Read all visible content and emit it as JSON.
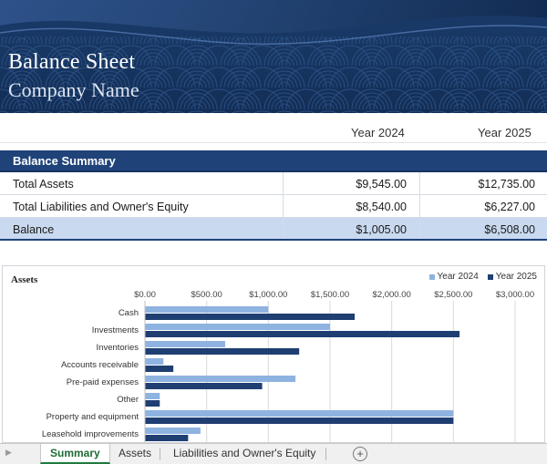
{
  "banner": {
    "title": "Balance Sheet",
    "subtitle": "Company Name"
  },
  "years": [
    "Year 2024",
    "Year 2025"
  ],
  "summary": {
    "header": "Balance Summary",
    "rows": [
      {
        "label": "Total Assets",
        "v2024": "$9,545.00",
        "v2025": "$12,735.00"
      },
      {
        "label": "Total Liabilities and Owner's Equity",
        "v2024": "$8,540.00",
        "v2025": "$6,227.00"
      },
      {
        "label": "Balance",
        "v2024": "$1,005.00",
        "v2025": "$6,508.00"
      }
    ]
  },
  "colors": {
    "banner": "#163560",
    "header": "#1f4379",
    "series2024": "#8fb3e0",
    "series2025": "#1f3f72",
    "accent_tab": "#1f7a3d"
  },
  "chart_data": {
    "type": "bar",
    "orientation": "horizontal",
    "title": "Assets",
    "categories": [
      "Cash",
      "Investments",
      "Inventories",
      "Accounts receivable",
      "Pre-paid expenses",
      "Other",
      "Property and equipment",
      "Leasehold improvements"
    ],
    "series": [
      {
        "name": "Year 2024",
        "values": [
          1000,
          1500,
          650,
          150,
          1220,
          120,
          2500,
          450
        ]
      },
      {
        "name": "Year 2025",
        "values": [
          1700,
          2550,
          1250,
          230,
          950,
          120,
          2500,
          350
        ]
      }
    ],
    "xlim": [
      0,
      3000
    ],
    "ticks": [
      "$0.00",
      "$500.00",
      "$1,000.00",
      "$1,500.00",
      "$2,000.00",
      "$2,500.00",
      "$3,000.00"
    ],
    "tick_values": [
      0,
      500,
      1000,
      1500,
      2000,
      2500,
      3000
    ],
    "legend": "top-right",
    "grid": true
  },
  "tabs": [
    "Summary",
    "Assets",
    "Liabilities and Owner's Equity"
  ],
  "icons": {
    "add_sheet": "plus-circle-icon",
    "nav": "scroll-left-icon"
  },
  "add_symbol": "+"
}
